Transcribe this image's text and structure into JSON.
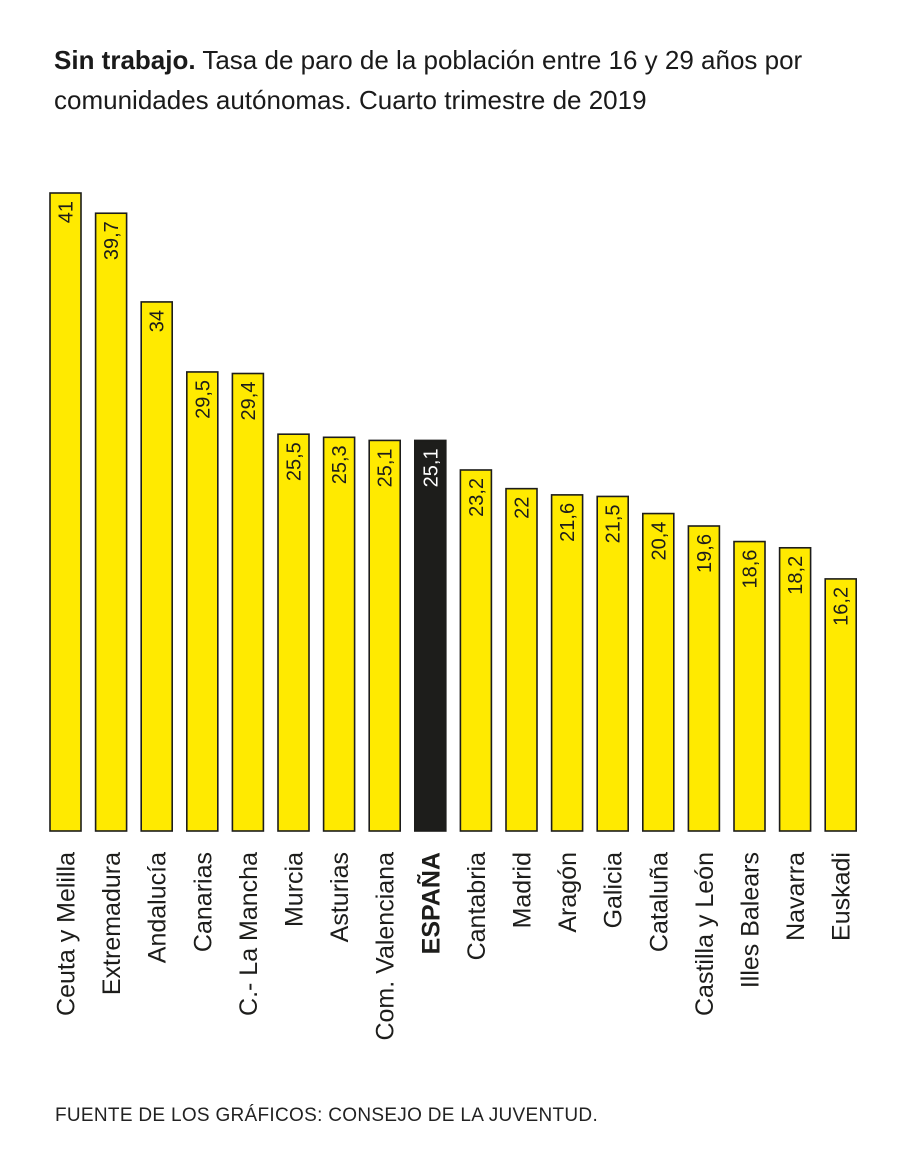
{
  "title": {
    "bold": "Sin trabajo.",
    "text": "Tasa de paro de la población  entre 16 y 29 años por comunidades autónomas. Cuarto trimestre de 2019"
  },
  "source": "FUENTE DE LOS GRÁFICOS: CONSEJO DE LA JUVENTUD.",
  "colors": {
    "bar": "#ffea00",
    "highlight_bar": "#1d1d1b",
    "stroke": "#1d1d1b"
  },
  "chart_data": {
    "type": "bar",
    "orientation": "vertical",
    "categories": [
      "Ceuta y Melilla",
      "Extremadura",
      "Andalucía",
      "Canarias",
      "C.- La Mancha",
      "Murcia",
      "Asturias",
      "Com. Valenciana",
      "ESPAÑA",
      "Cantabria",
      "Madrid",
      "Aragón",
      "Galicia",
      "Cataluña",
      "Castilla y León",
      "Illes Balears",
      "Navarra",
      "Euskadi"
    ],
    "values": [
      41,
      39.7,
      34,
      29.5,
      29.4,
      25.5,
      25.3,
      25.1,
      25.1,
      23.2,
      22,
      21.6,
      21.5,
      20.4,
      19.6,
      18.6,
      18.2,
      16.2
    ],
    "value_labels": [
      "41",
      "39,7",
      "34",
      "29,5",
      "29,4",
      "25,5",
      "25,3",
      "25,1",
      "25,1",
      "23,2",
      "22",
      "21,6",
      "21,5",
      "20,4",
      "19,6",
      "18,6",
      "18,2",
      "16,2"
    ],
    "highlight": "ESPAÑA",
    "ylim": [
      0,
      41
    ],
    "grid": false,
    "legend": "none",
    "xlabel": "",
    "ylabel": ""
  }
}
